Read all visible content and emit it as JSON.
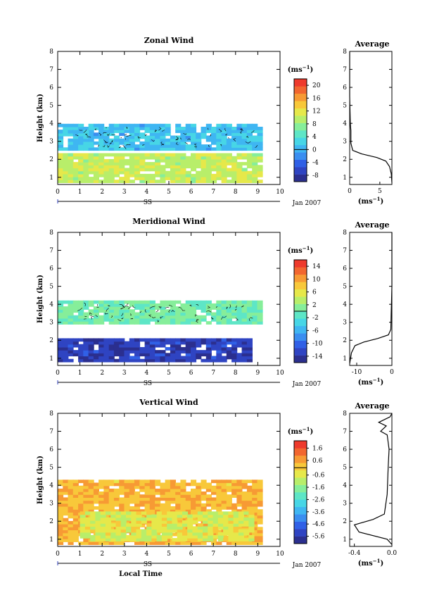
{
  "chart_data": [
    {
      "type": "heatmap",
      "title": "Zonal Wind",
      "xlabel": "",
      "ylabel": "Height (km)",
      "xlim": [
        0,
        10
      ],
      "ylim": [
        0.6,
        8
      ],
      "xticks": [
        "0",
        "1",
        "2",
        "3",
        "4",
        "5",
        "6",
        "7",
        "8",
        "9",
        "10"
      ],
      "yticks": [
        "1",
        "2",
        "3",
        "4",
        "5",
        "6",
        "7",
        "8"
      ],
      "date_label": "Jan 2007",
      "marker_label": "SS",
      "colorbar": {
        "unit": "(ms",
        "unit_exp": "−1",
        "unit_close": ")",
        "ticks": [
          "20",
          "16",
          "12",
          "8",
          "4",
          "0",
          "-4",
          "-8"
        ],
        "values": [
          20,
          16,
          12,
          8,
          4,
          0,
          -4,
          -8
        ],
        "min": -10,
        "max": 22,
        "colors": [
          "#2b2f8f",
          "#2f44c2",
          "#3060e6",
          "#3a8ef0",
          "#3fb6f2",
          "#47d6e6",
          "#5ee6c6",
          "#86ee9a",
          "#b8ee6a",
          "#e6e84a",
          "#f8c83a",
          "#f79a34",
          "#f2662f",
          "#ee3a2c"
        ]
      },
      "regions": [
        {
          "x": [
            0.0,
            9.2
          ],
          "y": [
            0.7,
            2.3
          ],
          "value": 10
        },
        {
          "x": [
            0.0,
            9.2
          ],
          "y": [
            2.5,
            3.9
          ],
          "value": 1
        },
        {
          "x": [
            0.0,
            1.2
          ],
          "y": [
            3.3,
            3.6
          ],
          "value": 1
        }
      ],
      "profile": {
        "title": "Average",
        "xlim": [
          0,
          7
        ],
        "xticks": [
          "0",
          "5"
        ],
        "xlabel": "(ms",
        "xlabel_exp": "−1",
        "xlabel_close": ")",
        "points": [
          [
            7,
            0.7
          ],
          [
            6.9,
            1.2
          ],
          [
            6.6,
            1.6
          ],
          [
            6.0,
            1.9
          ],
          [
            4.5,
            2.1
          ],
          [
            2.0,
            2.3
          ],
          [
            0.5,
            2.5
          ],
          [
            0.2,
            2.9
          ],
          [
            0.2,
            3.6
          ],
          [
            0.1,
            4.0
          ],
          [
            0.05,
            4.8
          ],
          [
            0,
            5.5
          ],
          [
            0,
            8
          ]
        ]
      }
    },
    {
      "type": "heatmap",
      "title": "Meridional Wind",
      "xlabel": "",
      "ylabel": "Height (km)",
      "xlim": [
        0,
        10
      ],
      "ylim": [
        0.6,
        8
      ],
      "xticks": [
        "0",
        "1",
        "2",
        "3",
        "4",
        "5",
        "6",
        "7",
        "8",
        "9",
        "10"
      ],
      "yticks": [
        "1",
        "2",
        "3",
        "4",
        "5",
        "6",
        "7",
        "8"
      ],
      "date_label": "Jan 2007",
      "marker_label": "SS",
      "colorbar": {
        "unit": "(ms",
        "unit_exp": "−1",
        "unit_close": ")",
        "ticks": [
          "14",
          "10",
          "6",
          "2",
          "-2",
          "-6",
          "-10",
          "-14"
        ],
        "values": [
          14,
          10,
          6,
          2,
          -2,
          -6,
          -10,
          -14
        ],
        "min": -16,
        "max": 16,
        "colors": [
          "#2b2f8f",
          "#2f44c2",
          "#3060e6",
          "#3a8ef0",
          "#3fb6f2",
          "#47d6e6",
          "#5ee6c6",
          "#86ee9a",
          "#b8ee6a",
          "#e6e84a",
          "#f8c83a",
          "#f79a34",
          "#f2662f",
          "#ee3a2c"
        ]
      },
      "regions": [
        {
          "x": [
            0.0,
            8.6
          ],
          "y": [
            0.8,
            2.0
          ],
          "value": -13
        },
        {
          "x": [
            0.0,
            9.0
          ],
          "y": [
            2.9,
            4.1
          ],
          "value": 0
        }
      ],
      "profile": {
        "title": "Average",
        "xlim": [
          -12,
          0
        ],
        "xticks": [
          "-10",
          "0"
        ],
        "xlabel": "(ms",
        "xlabel_exp": "−1",
        "xlabel_close": ")",
        "points": [
          [
            -12,
            0.7
          ],
          [
            -11.5,
            1.3
          ],
          [
            -10.5,
            1.7
          ],
          [
            -8.0,
            1.9
          ],
          [
            -4.0,
            2.1
          ],
          [
            -1.0,
            2.3
          ],
          [
            -0.3,
            2.6
          ],
          [
            -0.2,
            3.5
          ],
          [
            -0.1,
            4.2
          ],
          [
            0,
            5.0
          ],
          [
            0,
            8
          ]
        ]
      }
    },
    {
      "type": "heatmap",
      "title": "Vertical Wind",
      "xlabel": "Local Time",
      "ylabel": "Height (km)",
      "xlim": [
        0,
        10
      ],
      "ylim": [
        0.6,
        8
      ],
      "xticks": [
        "0",
        "1",
        "2",
        "3",
        "4",
        "5",
        "6",
        "7",
        "8",
        "9",
        "10"
      ],
      "yticks": [
        "1",
        "2",
        "3",
        "4",
        "5",
        "6",
        "7",
        "8"
      ],
      "date_label": "Jan 2007",
      "marker_label": "SS",
      "colorbar": {
        "unit": "(ms",
        "unit_exp": "−1",
        "unit_close": ")",
        "ticks": [
          "1.6",
          "0.6",
          "-0.6",
          "-1.6",
          "-2.6",
          "-3.6",
          "-4.6",
          "-5.6"
        ],
        "values": [
          1.6,
          0.6,
          -0.6,
          -1.6,
          -2.6,
          -3.6,
          -4.6,
          -5.6
        ],
        "min": -6.2,
        "max": 2.2,
        "colors": [
          "#2b2f8f",
          "#2f44c2",
          "#3060e6",
          "#3a8ef0",
          "#3fb6f2",
          "#47d6e6",
          "#5ee6c6",
          "#86ee9a",
          "#b8ee6a",
          "#e6e84a",
          "#f8c83a",
          "#f79a34",
          "#f2662f",
          "#ee3a2c"
        ]
      },
      "regions": [
        {
          "x": [
            0.0,
            9.2
          ],
          "y": [
            0.7,
            4.3
          ],
          "value": 0.3
        },
        {
          "x": [
            1.0,
            8.8
          ],
          "y": [
            0.9,
            2.4
          ],
          "value": -0.6
        }
      ],
      "profile": {
        "title": "Average",
        "xlim": [
          -0.45,
          0
        ],
        "xticks": [
          "-0.4",
          "0.0"
        ],
        "xlabel": "(ms",
        "xlabel_exp": "−1",
        "xlabel_close": ")",
        "points": [
          [
            0,
            0.7
          ],
          [
            -0.05,
            1.0
          ],
          [
            -0.35,
            1.4
          ],
          [
            -0.4,
            1.8
          ],
          [
            -0.2,
            2.1
          ],
          [
            -0.08,
            2.4
          ],
          [
            -0.05,
            3.5
          ],
          [
            -0.04,
            5.0
          ],
          [
            -0.03,
            6.0
          ],
          [
            -0.05,
            6.8
          ],
          [
            -0.12,
            7.0
          ],
          [
            -0.06,
            7.3
          ],
          [
            -0.14,
            7.5
          ],
          [
            -0.02,
            7.8
          ],
          [
            0,
            8
          ]
        ]
      }
    }
  ]
}
